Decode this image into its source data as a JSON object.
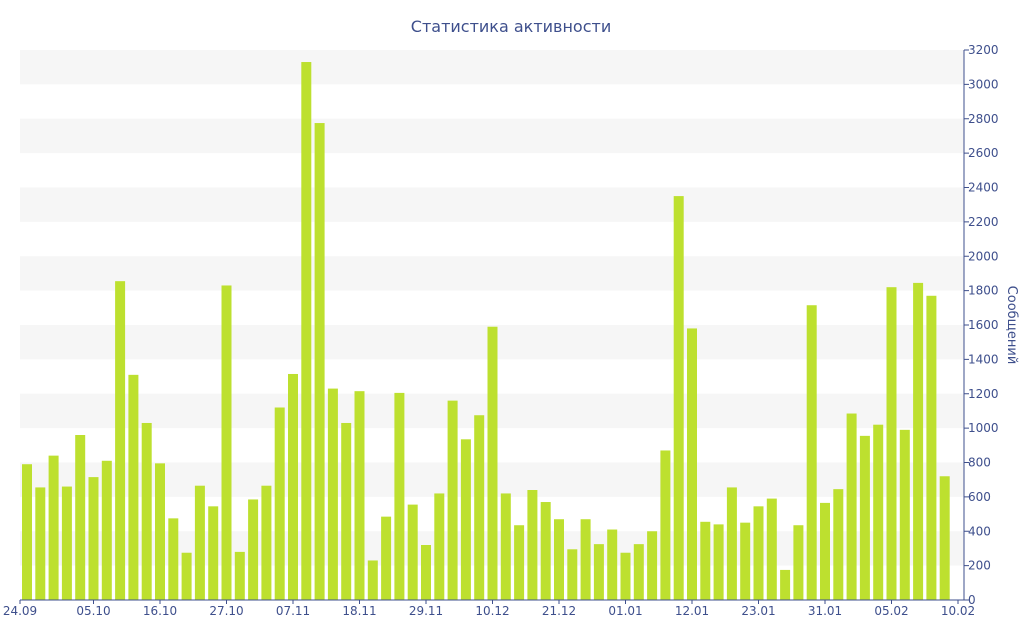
{
  "chart_data": {
    "type": "bar",
    "title": "Статистика активности",
    "ylabel": "Сообщений",
    "xlabel": "",
    "ylim": [
      0,
      3200
    ],
    "y_ticks": [
      0,
      200,
      400,
      600,
      800,
      1000,
      1200,
      1400,
      1600,
      1800,
      2000,
      2200,
      2400,
      2600,
      2800,
      3000,
      3200
    ],
    "y_axis_side": "right",
    "grid": "alternating horizontal bands",
    "legend": "none",
    "x_tick_labels": [
      {
        "index": 0,
        "label": "24.09"
      },
      {
        "index": 5,
        "label": "05.10"
      },
      {
        "index": 10,
        "label": "16.10"
      },
      {
        "index": 15,
        "label": "27.10"
      },
      {
        "index": 20,
        "label": "07.11"
      },
      {
        "index": 25,
        "label": "18.11"
      },
      {
        "index": 30,
        "label": "29.11"
      },
      {
        "index": 35,
        "label": "10.12"
      },
      {
        "index": 40,
        "label": "21.12"
      },
      {
        "index": 45,
        "label": "01.01"
      },
      {
        "index": 50,
        "label": "12.01"
      },
      {
        "index": 55,
        "label": "23.01"
      },
      {
        "index": 60,
        "label": "31.01"
      },
      {
        "index": 65,
        "label": "05.02"
      },
      {
        "index": 70,
        "label": "10.02"
      }
    ],
    "values": [
      790,
      655,
      840,
      660,
      960,
      715,
      810,
      1855,
      1310,
      1030,
      795,
      475,
      275,
      665,
      545,
      1830,
      280,
      585,
      665,
      1120,
      1315,
      3130,
      2775,
      1230,
      1030,
      1215,
      230,
      485,
      1205,
      555,
      320,
      620,
      1160,
      935,
      1075,
      1590,
      620,
      435,
      640,
      570,
      470,
      295,
      470,
      325,
      410,
      275,
      325,
      400,
      870,
      2350,
      1580,
      455,
      440,
      655,
      450,
      545,
      590,
      175,
      435,
      1715,
      565,
      645,
      1085,
      955,
      1020,
      1820,
      990,
      1845,
      1770,
      720
    ],
    "colors": {
      "bar": "#bde02f",
      "band": "#f6f6f6",
      "text": "#3e4f8c"
    }
  }
}
